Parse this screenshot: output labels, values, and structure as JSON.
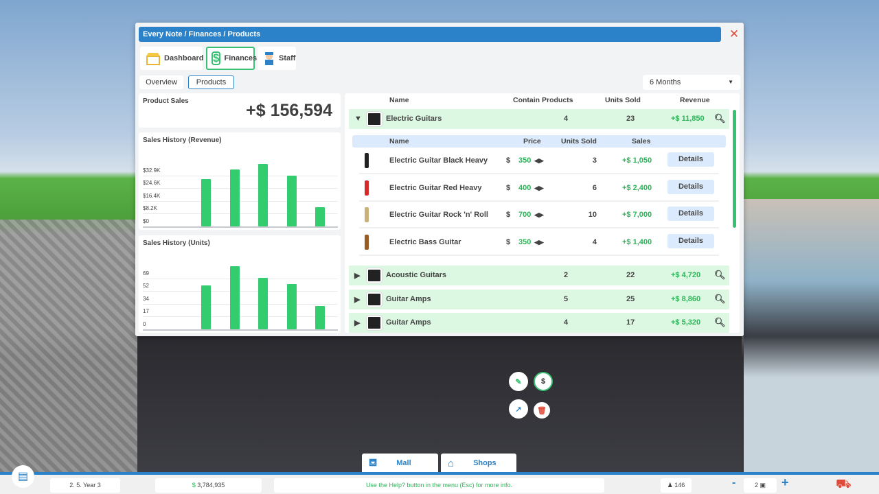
{
  "window": {
    "breadcrumb": "Every Note / Finances / Products",
    "close_icon": "close-icon"
  },
  "tabs": [
    {
      "label": "Dashboard",
      "icon": "shop-icon"
    },
    {
      "label": "Finances",
      "icon": "dollar-icon",
      "selected": true
    },
    {
      "label": "Staff",
      "icon": "staff-icon"
    }
  ],
  "subtabs": [
    {
      "label": "Overview"
    },
    {
      "label": "Products",
      "selected": true
    }
  ],
  "period": {
    "selected": "6 Months"
  },
  "summary": {
    "label": "Product Sales",
    "value": "+$ 156,594"
  },
  "chart_data": [
    {
      "type": "bar",
      "title": "Sales History (Revenue)",
      "yticks": [
        "$0",
        "$8.2K",
        "$16.4K",
        "$24.6K",
        "$32.9K"
      ],
      "ylim": [
        0,
        41125
      ],
      "values": [
        30700,
        36900,
        40400,
        32900,
        12200
      ],
      "color": "#33cc6e",
      "grid": true
    },
    {
      "type": "bar",
      "title": "Sales History (Units)",
      "yticks": [
        "0",
        "17",
        "34",
        "52",
        "69"
      ],
      "ylim": [
        0,
        86
      ],
      "values": [
        59,
        85,
        69,
        61,
        31
      ],
      "color": "#33cc6e",
      "grid": true
    }
  ],
  "table": {
    "headers": {
      "name": "Name",
      "contain": "Contain Products",
      "units": "Units Sold",
      "revenue": "Revenue"
    },
    "sub_headers": {
      "name": "Name",
      "price": "Price",
      "units": "Units Sold",
      "sales": "Sales"
    },
    "groups": [
      {
        "name": "Electric Guitars",
        "contain": "4",
        "units": "23",
        "revenue": "+$ 11,850",
        "expanded": true
      },
      {
        "name": "Acoustic Guitars",
        "contain": "2",
        "units": "22",
        "revenue": "+$ 4,720"
      },
      {
        "name": "Guitar Amps",
        "contain": "5",
        "units": "25",
        "revenue": "+$ 8,860"
      },
      {
        "name": "Guitar Amps",
        "contain": "4",
        "units": "17",
        "revenue": "+$ 5,320"
      }
    ],
    "products": [
      {
        "name": "Electric Guitar Black Heavy",
        "currency": "$",
        "price": "350",
        "units": "3",
        "sales": "+$ 1,050",
        "details": "Details",
        "color": "#222222"
      },
      {
        "name": "Electric Guitar Red Heavy",
        "currency": "$",
        "price": "400",
        "units": "6",
        "sales": "+$ 2,400",
        "details": "Details",
        "color": "#d42a2a"
      },
      {
        "name": "Electric Guitar Rock 'n' Roll",
        "currency": "$",
        "price": "700",
        "units": "10",
        "sales": "+$ 7,000",
        "details": "Details",
        "color": "#c9b27a"
      },
      {
        "name": "Electric Bass Guitar",
        "currency": "$",
        "price": "350",
        "units": "4",
        "sales": "+$ 1,400",
        "details": "Details",
        "color": "#9a5a24"
      }
    ]
  },
  "nav": {
    "mall": "Mall",
    "shops": "Shops"
  },
  "status": {
    "date": "2. 5.  Year 3",
    "money_symbol": "$",
    "money": "3,784,935",
    "hint": "Use the Help? button in the menu (Esc) for more info.",
    "visitors": "146",
    "speed": "2",
    "minus": "-",
    "plus": "+"
  }
}
